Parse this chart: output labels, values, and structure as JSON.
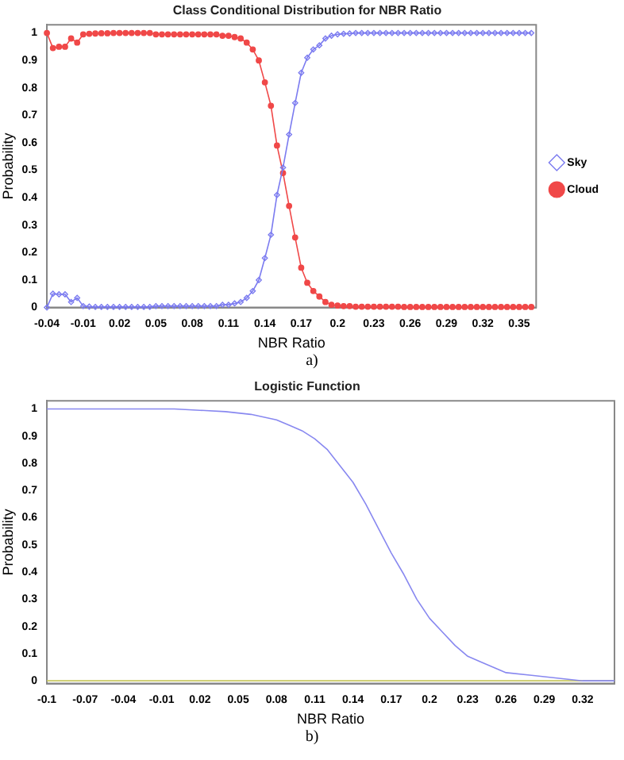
{
  "chart_data": [
    {
      "type": "line",
      "title": "Class Conditional Distribution for NBR Ratio",
      "xlabel": "NBR Ratio",
      "ylabel": "Probability",
      "annotations": [
        "a)"
      ],
      "x": [
        -0.04,
        -0.035,
        -0.03,
        -0.025,
        -0.02,
        -0.015,
        -0.01,
        -0.005,
        0,
        0.005,
        0.01,
        0.015,
        0.02,
        0.025,
        0.03,
        0.035,
        0.04,
        0.045,
        0.05,
        0.055,
        0.06,
        0.065,
        0.07,
        0.075,
        0.08,
        0.085,
        0.09,
        0.095,
        0.1,
        0.105,
        0.11,
        0.115,
        0.12,
        0.125,
        0.13,
        0.135,
        0.14,
        0.145,
        0.15,
        0.155,
        0.16,
        0.165,
        0.17,
        0.175,
        0.18,
        0.185,
        0.19,
        0.195,
        0.2,
        0.205,
        0.21,
        0.215,
        0.22,
        0.225,
        0.23,
        0.235,
        0.24,
        0.245,
        0.25,
        0.255,
        0.26,
        0.265,
        0.27,
        0.275,
        0.28,
        0.285,
        0.29,
        0.295,
        0.3,
        0.305,
        0.31,
        0.315,
        0.32,
        0.325,
        0.33,
        0.335,
        0.34,
        0.345,
        0.35,
        0.355,
        0.36
      ],
      "series": [
        {
          "name": "Sky",
          "color": "#7b7bf0",
          "marker": "diamond",
          "values": [
            0,
            0.05,
            0.048,
            0.048,
            0.02,
            0.035,
            0.005,
            0.003,
            0.002,
            0.002,
            0.002,
            0.002,
            0.002,
            0.002,
            0.002,
            0.002,
            0.002,
            0.002,
            0.005,
            0.005,
            0.005,
            0.005,
            0.005,
            0.005,
            0.005,
            0.005,
            0.005,
            0.005,
            0.005,
            0.01,
            0.01,
            0.015,
            0.02,
            0.035,
            0.06,
            0.1,
            0.18,
            0.265,
            0.41,
            0.51,
            0.63,
            0.745,
            0.855,
            0.91,
            0.94,
            0.955,
            0.98,
            0.99,
            0.995,
            0.997,
            0.998,
            1,
            1,
            1,
            1,
            1,
            1,
            1,
            1,
            1,
            1,
            1,
            1,
            1,
            1,
            1,
            1,
            1,
            1,
            1,
            1,
            1,
            1,
            1,
            1,
            1,
            1,
            1,
            1,
            1,
            1
          ]
        },
        {
          "name": "Cloud",
          "color": "#f04848",
          "marker": "circle",
          "values": [
            1,
            0.945,
            0.95,
            0.95,
            0.98,
            0.965,
            0.995,
            0.997,
            0.998,
            0.999,
            0.999,
            1,
            1,
            1,
            1,
            1,
            1,
            1,
            0.995,
            0.995,
            0.995,
            0.995,
            0.995,
            0.995,
            0.995,
            0.995,
            0.995,
            0.995,
            0.995,
            0.99,
            0.99,
            0.985,
            0.98,
            0.965,
            0.94,
            0.9,
            0.82,
            0.735,
            0.59,
            0.49,
            0.37,
            0.255,
            0.145,
            0.09,
            0.06,
            0.04,
            0.02,
            0.01,
            0.007,
            0.005,
            0.005,
            0.003,
            0.003,
            0.003,
            0.003,
            0.003,
            0.003,
            0.003,
            0.003,
            0.002,
            0.002,
            0.002,
            0.002,
            0.002,
            0.002,
            0.002,
            0.002,
            0.002,
            0.002,
            0.002,
            0.002,
            0.002,
            0.002,
            0.002,
            0.002,
            0.002,
            0.002,
            0.002,
            0.002,
            0.002,
            0.002
          ]
        }
      ],
      "xlim": [
        -0.04,
        0.364
      ],
      "xticks": [
        -0.04,
        -0.01,
        0.02,
        0.05,
        0.08,
        0.11,
        0.14,
        0.17,
        0.2,
        0.23,
        0.26,
        0.29,
        0.32,
        0.35
      ],
      "ylim": [
        0,
        1.03
      ],
      "yticks": [
        0,
        0.1,
        0.2,
        0.3,
        0.4,
        0.5,
        0.6,
        0.7,
        0.8,
        0.9,
        1
      ],
      "legend": "right",
      "grid": false,
      "line_style": "solid"
    },
    {
      "type": "line",
      "title": "Logistic Function",
      "xlabel": "NBR Ratio",
      "ylabel": "Probability",
      "annotations": [
        "b)"
      ],
      "series": [
        {
          "color": "#8888f0",
          "x": [
            -0.1,
            0,
            0.02,
            0.04,
            0.06,
            0.08,
            0.09,
            0.1,
            0.11,
            0.12,
            0.13,
            0.14,
            0.15,
            0.16,
            0.17,
            0.18,
            0.19,
            0.2,
            0.21,
            0.22,
            0.23,
            0.24,
            0.26,
            0.28,
            0.3,
            0.32,
            0.345
          ],
          "values": [
            1,
            1,
            0.995,
            0.99,
            0.98,
            0.96,
            0.94,
            0.92,
            0.89,
            0.85,
            0.79,
            0.73,
            0.65,
            0.56,
            0.47,
            0.39,
            0.3,
            0.23,
            0.18,
            0.13,
            0.09,
            0.07,
            0.03,
            0.02,
            0.01,
            0,
            0
          ]
        },
        {
          "color": "#c8c860",
          "x": [
            -0.1,
            0.345
          ],
          "values": [
            0,
            0
          ]
        }
      ],
      "xlim": [
        -0.1,
        0.345
      ],
      "xticks": [
        -0.1,
        -0.07,
        -0.04,
        -0.01,
        0.02,
        0.05,
        0.08,
        0.11,
        0.14,
        0.17,
        0.2,
        0.23,
        0.26,
        0.29,
        0.32
      ],
      "ylim": [
        -0.01,
        1.03
      ],
      "yticks": [
        0,
        0.1,
        0.2,
        0.3,
        0.4,
        0.5,
        0.6,
        0.7,
        0.8,
        0.9,
        1
      ],
      "grid": false,
      "line_style": "solid"
    }
  ]
}
